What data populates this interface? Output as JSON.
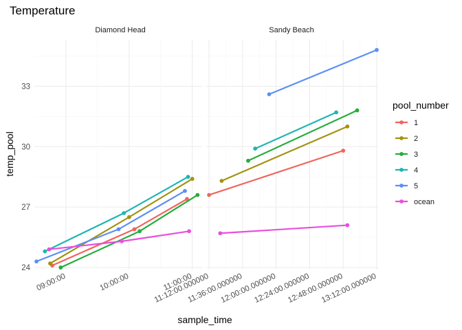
{
  "chart_data": {
    "type": "line",
    "title": "Temperature",
    "xlabel": "sample_time",
    "ylabel": "temp_pool",
    "ylim": [
      23.9,
      35.3
    ],
    "y_ticks": [
      24,
      27,
      30,
      33
    ],
    "legend": {
      "title": "pool_number",
      "position": "right",
      "entries": [
        "1",
        "2",
        "3",
        "4",
        "5",
        "ocean"
      ]
    },
    "colors": {
      "1": "#f0645d",
      "2": "#a3920e",
      "3": "#22ae3a",
      "4": "#1db5b4",
      "5": "#5c8ff5",
      "ocean": "#e84fdc"
    },
    "panels": [
      {
        "strip": "Diamond Head",
        "xlim": [
          "08:30",
          "11:10"
        ],
        "x_ticks": [
          {
            "t": "09:00",
            "label": "09:00:00"
          },
          {
            "t": "10:00",
            "label": "10:00:00"
          },
          {
            "t": "11:00",
            "label": "11:00:00"
          }
        ],
        "series": [
          {
            "name": "1",
            "points": [
              {
                "x": "08:47",
                "y": 24.1
              },
              {
                "x": "10:05",
                "y": 25.9
              },
              {
                "x": "10:55",
                "y": 27.4
              }
            ]
          },
          {
            "name": "2",
            "points": [
              {
                "x": "08:45",
                "y": 24.2
              },
              {
                "x": "10:00",
                "y": 26.5
              },
              {
                "x": "11:00",
                "y": 28.4
              }
            ]
          },
          {
            "name": "3",
            "points": [
              {
                "x": "08:55",
                "y": 24.0
              },
              {
                "x": "10:10",
                "y": 25.8
              },
              {
                "x": "11:05",
                "y": 27.6
              }
            ]
          },
          {
            "name": "4",
            "points": [
              {
                "x": "08:40",
                "y": 24.8
              },
              {
                "x": "09:55",
                "y": 26.7
              },
              {
                "x": "10:56",
                "y": 28.5
              }
            ]
          },
          {
            "name": "5",
            "points": [
              {
                "x": "08:32",
                "y": 24.3
              },
              {
                "x": "09:50",
                "y": 25.9
              },
              {
                "x": "10:53",
                "y": 27.8
              }
            ]
          },
          {
            "name": "ocean",
            "points": [
              {
                "x": "08:44",
                "y": 24.9
              },
              {
                "x": "09:53",
                "y": 25.3
              },
              {
                "x": "10:57",
                "y": 25.8
              }
            ]
          }
        ]
      },
      {
        "strip": "Sandy Beach",
        "xlim": [
          "11:10",
          "13:13"
        ],
        "x_ticks": [
          {
            "t": "11:12",
            "label": "11:12:00.000000"
          },
          {
            "t": "11:36",
            "label": "11:36:00.000000"
          },
          {
            "t": "12:00",
            "label": "12:00:00.000000"
          },
          {
            "t": "12:24",
            "label": "12:24:00.000000"
          },
          {
            "t": "12:48",
            "label": "12:48:00.000000"
          },
          {
            "t": "13:12",
            "label": "13:12:00.000000"
          }
        ],
        "series": [
          {
            "name": "1",
            "points": [
              {
                "x": "11:12",
                "y": 27.6
              },
              {
                "x": "12:48",
                "y": 29.8
              }
            ]
          },
          {
            "name": "2",
            "points": [
              {
                "x": "11:21",
                "y": 28.3
              },
              {
                "x": "12:51",
                "y": 31.0
              }
            ]
          },
          {
            "name": "3",
            "points": [
              {
                "x": "11:40",
                "y": 29.3
              },
              {
                "x": "12:58",
                "y": 31.8
              }
            ]
          },
          {
            "name": "4",
            "points": [
              {
                "x": "11:45",
                "y": 29.9
              },
              {
                "x": "12:43",
                "y": 31.7
              }
            ]
          },
          {
            "name": "5",
            "points": [
              {
                "x": "11:55",
                "y": 32.6
              },
              {
                "x": "13:12",
                "y": 34.8
              }
            ]
          },
          {
            "name": "ocean",
            "points": [
              {
                "x": "11:20",
                "y": 25.7
              },
              {
                "x": "12:51",
                "y": 26.1
              }
            ]
          }
        ]
      }
    ]
  }
}
